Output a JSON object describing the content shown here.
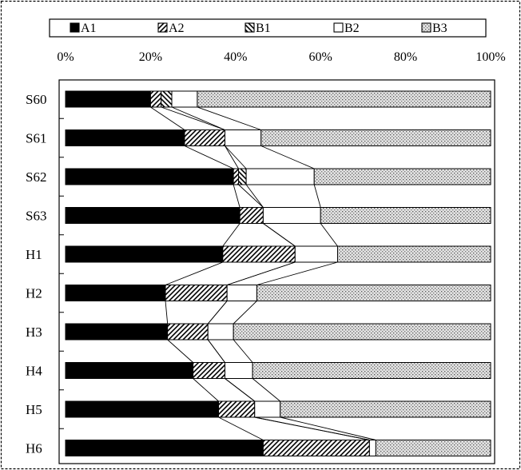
{
  "chart_data": {
    "type": "bar",
    "orientation": "horizontal",
    "stacked": "100%",
    "categories": [
      "S60",
      "S61",
      "S62",
      "S63",
      "H1",
      "H2",
      "H3",
      "H4",
      "H5",
      "H6"
    ],
    "series": [
      {
        "name": "A1",
        "pattern": "solid",
        "values": [
          20,
          28,
          39.5,
          41,
          37,
          23.5,
          24,
          30,
          36,
          46.5
        ]
      },
      {
        "name": "A2",
        "pattern": "diagonal-up",
        "values": [
          2.5,
          9.5,
          1.2,
          5.5,
          17,
          14.5,
          9.5,
          7.5,
          8.5,
          25
        ]
      },
      {
        "name": "B1",
        "pattern": "diagonal-down",
        "values": [
          2.5,
          0,
          1.8,
          0,
          0,
          0,
          0,
          0,
          0,
          0
        ]
      },
      {
        "name": "B2",
        "pattern": "open",
        "values": [
          6,
          8.5,
          16,
          13.5,
          10,
          7,
          6,
          6.5,
          6,
          1.5
        ]
      },
      {
        "name": "B3",
        "pattern": "dotted",
        "values": [
          69,
          54,
          41.5,
          40,
          36,
          55,
          60.5,
          56,
          49.5,
          27
        ]
      }
    ],
    "xticks": [
      "0%",
      "20%",
      "40%",
      "60%",
      "80%",
      "100%"
    ],
    "xlim": [
      0,
      100
    ],
    "xaxis_position": "top",
    "legend": "top",
    "connector_lines": true,
    "grid": false,
    "colors": {
      "bar_fill": "#000000",
      "hatch": "#000000",
      "dots": "#555555",
      "background": "#ffffff"
    }
  }
}
